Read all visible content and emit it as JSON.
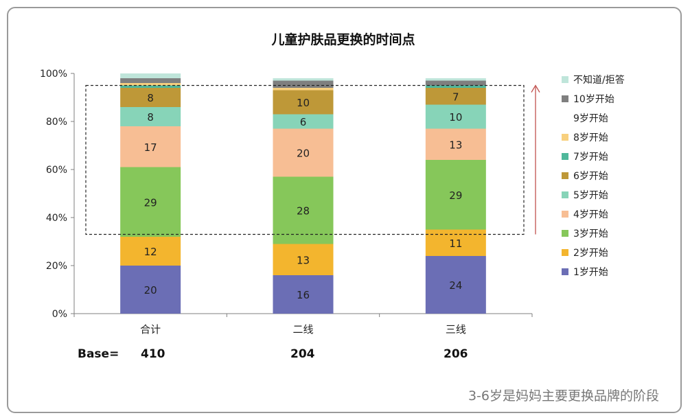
{
  "chart_data": {
    "type": "bar",
    "stacked": true,
    "title": "儿童护肤品更换的时间点",
    "categories": [
      "合计",
      "二线",
      "三线"
    ],
    "ylim": [
      0,
      100
    ],
    "yticks": [
      "0%",
      "20%",
      "40%",
      "60%",
      "80%",
      "100%"
    ],
    "series": [
      {
        "name": "1岁开始",
        "color": "#6B6EB5",
        "values": [
          20,
          16,
          24
        ]
      },
      {
        "name": "2岁开始",
        "color": "#F3B52E",
        "values": [
          12,
          13,
          11
        ]
      },
      {
        "name": "3岁开始",
        "color": "#86C75A",
        "values": [
          29,
          28,
          29
        ]
      },
      {
        "name": "4岁开始",
        "color": "#F7BE94",
        "values": [
          17,
          20,
          13
        ]
      },
      {
        "name": "5岁开始",
        "color": "#87D4B8",
        "values": [
          8,
          6,
          10
        ]
      },
      {
        "name": "6岁开始",
        "color": "#BE9838",
        "values": [
          8,
          10,
          7
        ]
      },
      {
        "name": "7岁开始",
        "color": "#4FB89B",
        "values": [
          1,
          0,
          1
        ]
      },
      {
        "name": "8岁开始",
        "color": "#F8D07E",
        "values": [
          1,
          1,
          0
        ]
      },
      {
        "name": "9岁开始",
        "color": "#FFFFFF",
        "values": [
          0,
          0,
          0
        ]
      },
      {
        "name": "10岁开始",
        "color": "#7F7F7F",
        "values": [
          2,
          3,
          2
        ]
      },
      {
        "name": "不知道/拒答",
        "color": "#BFE5DA",
        "values": [
          2,
          1,
          1
        ]
      }
    ],
    "label_series": [
      "1岁开始",
      "2岁开始",
      "3岁开始",
      "4岁开始",
      "5岁开始",
      "6岁开始"
    ],
    "legend_position": "right",
    "grid": false,
    "highlight_box": {
      "from_pct": 33,
      "to_pct": 95
    }
  },
  "base_row": {
    "label": "Base=",
    "values": [
      "410",
      "204",
      "206"
    ]
  },
  "footnote": "3-6岁是妈妈主要更换品牌的阶段"
}
